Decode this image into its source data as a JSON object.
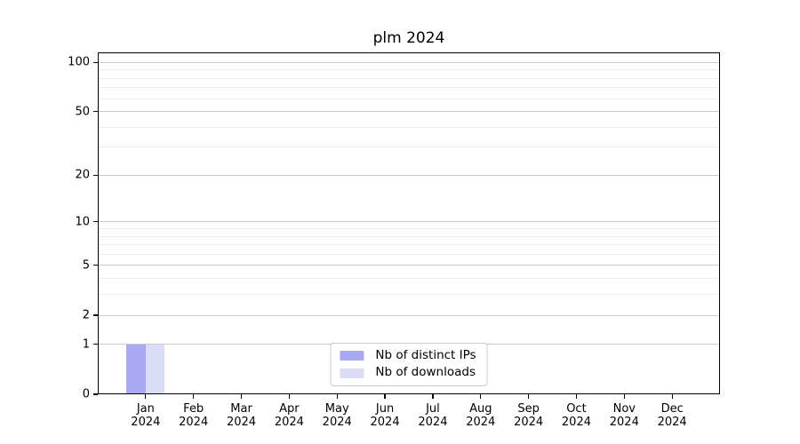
{
  "chart_data": {
    "type": "bar",
    "title": "plm 2024",
    "categories": [
      "Jan",
      "Feb",
      "Mar",
      "Apr",
      "May",
      "Jun",
      "Jul",
      "Aug",
      "Sep",
      "Oct",
      "Nov",
      "Dec"
    ],
    "category_sublabel": "2024",
    "series": [
      {
        "name": "Nb of distinct IPs",
        "color": "#a8a9f2",
        "values": [
          1,
          0,
          0,
          0,
          0,
          0,
          0,
          0,
          0,
          0,
          0,
          0
        ]
      },
      {
        "name": "Nb of downloads",
        "color": "#dbdcf7",
        "values": [
          1,
          0,
          0,
          0,
          0,
          0,
          0,
          0,
          0,
          0,
          0,
          0
        ]
      }
    ],
    "xlabel": "",
    "ylabel": "",
    "y_scale": "log1p",
    "y_major_ticks": [
      0,
      1,
      2,
      5,
      10,
      20,
      50,
      100
    ],
    "y_minor_ticks": [
      3,
      4,
      6,
      7,
      8,
      9,
      30,
      40,
      60,
      70,
      80,
      90
    ],
    "ylim": [
      0,
      115
    ],
    "grid": {
      "axis": "y",
      "major_color": "#cccccc",
      "minor_color": "#ededed"
    },
    "legend": {
      "position": "lower center"
    }
  },
  "colors": {
    "background": "#ffffff",
    "spine": "#000000",
    "text": "#000000",
    "legend_border": "#cccccc"
  }
}
